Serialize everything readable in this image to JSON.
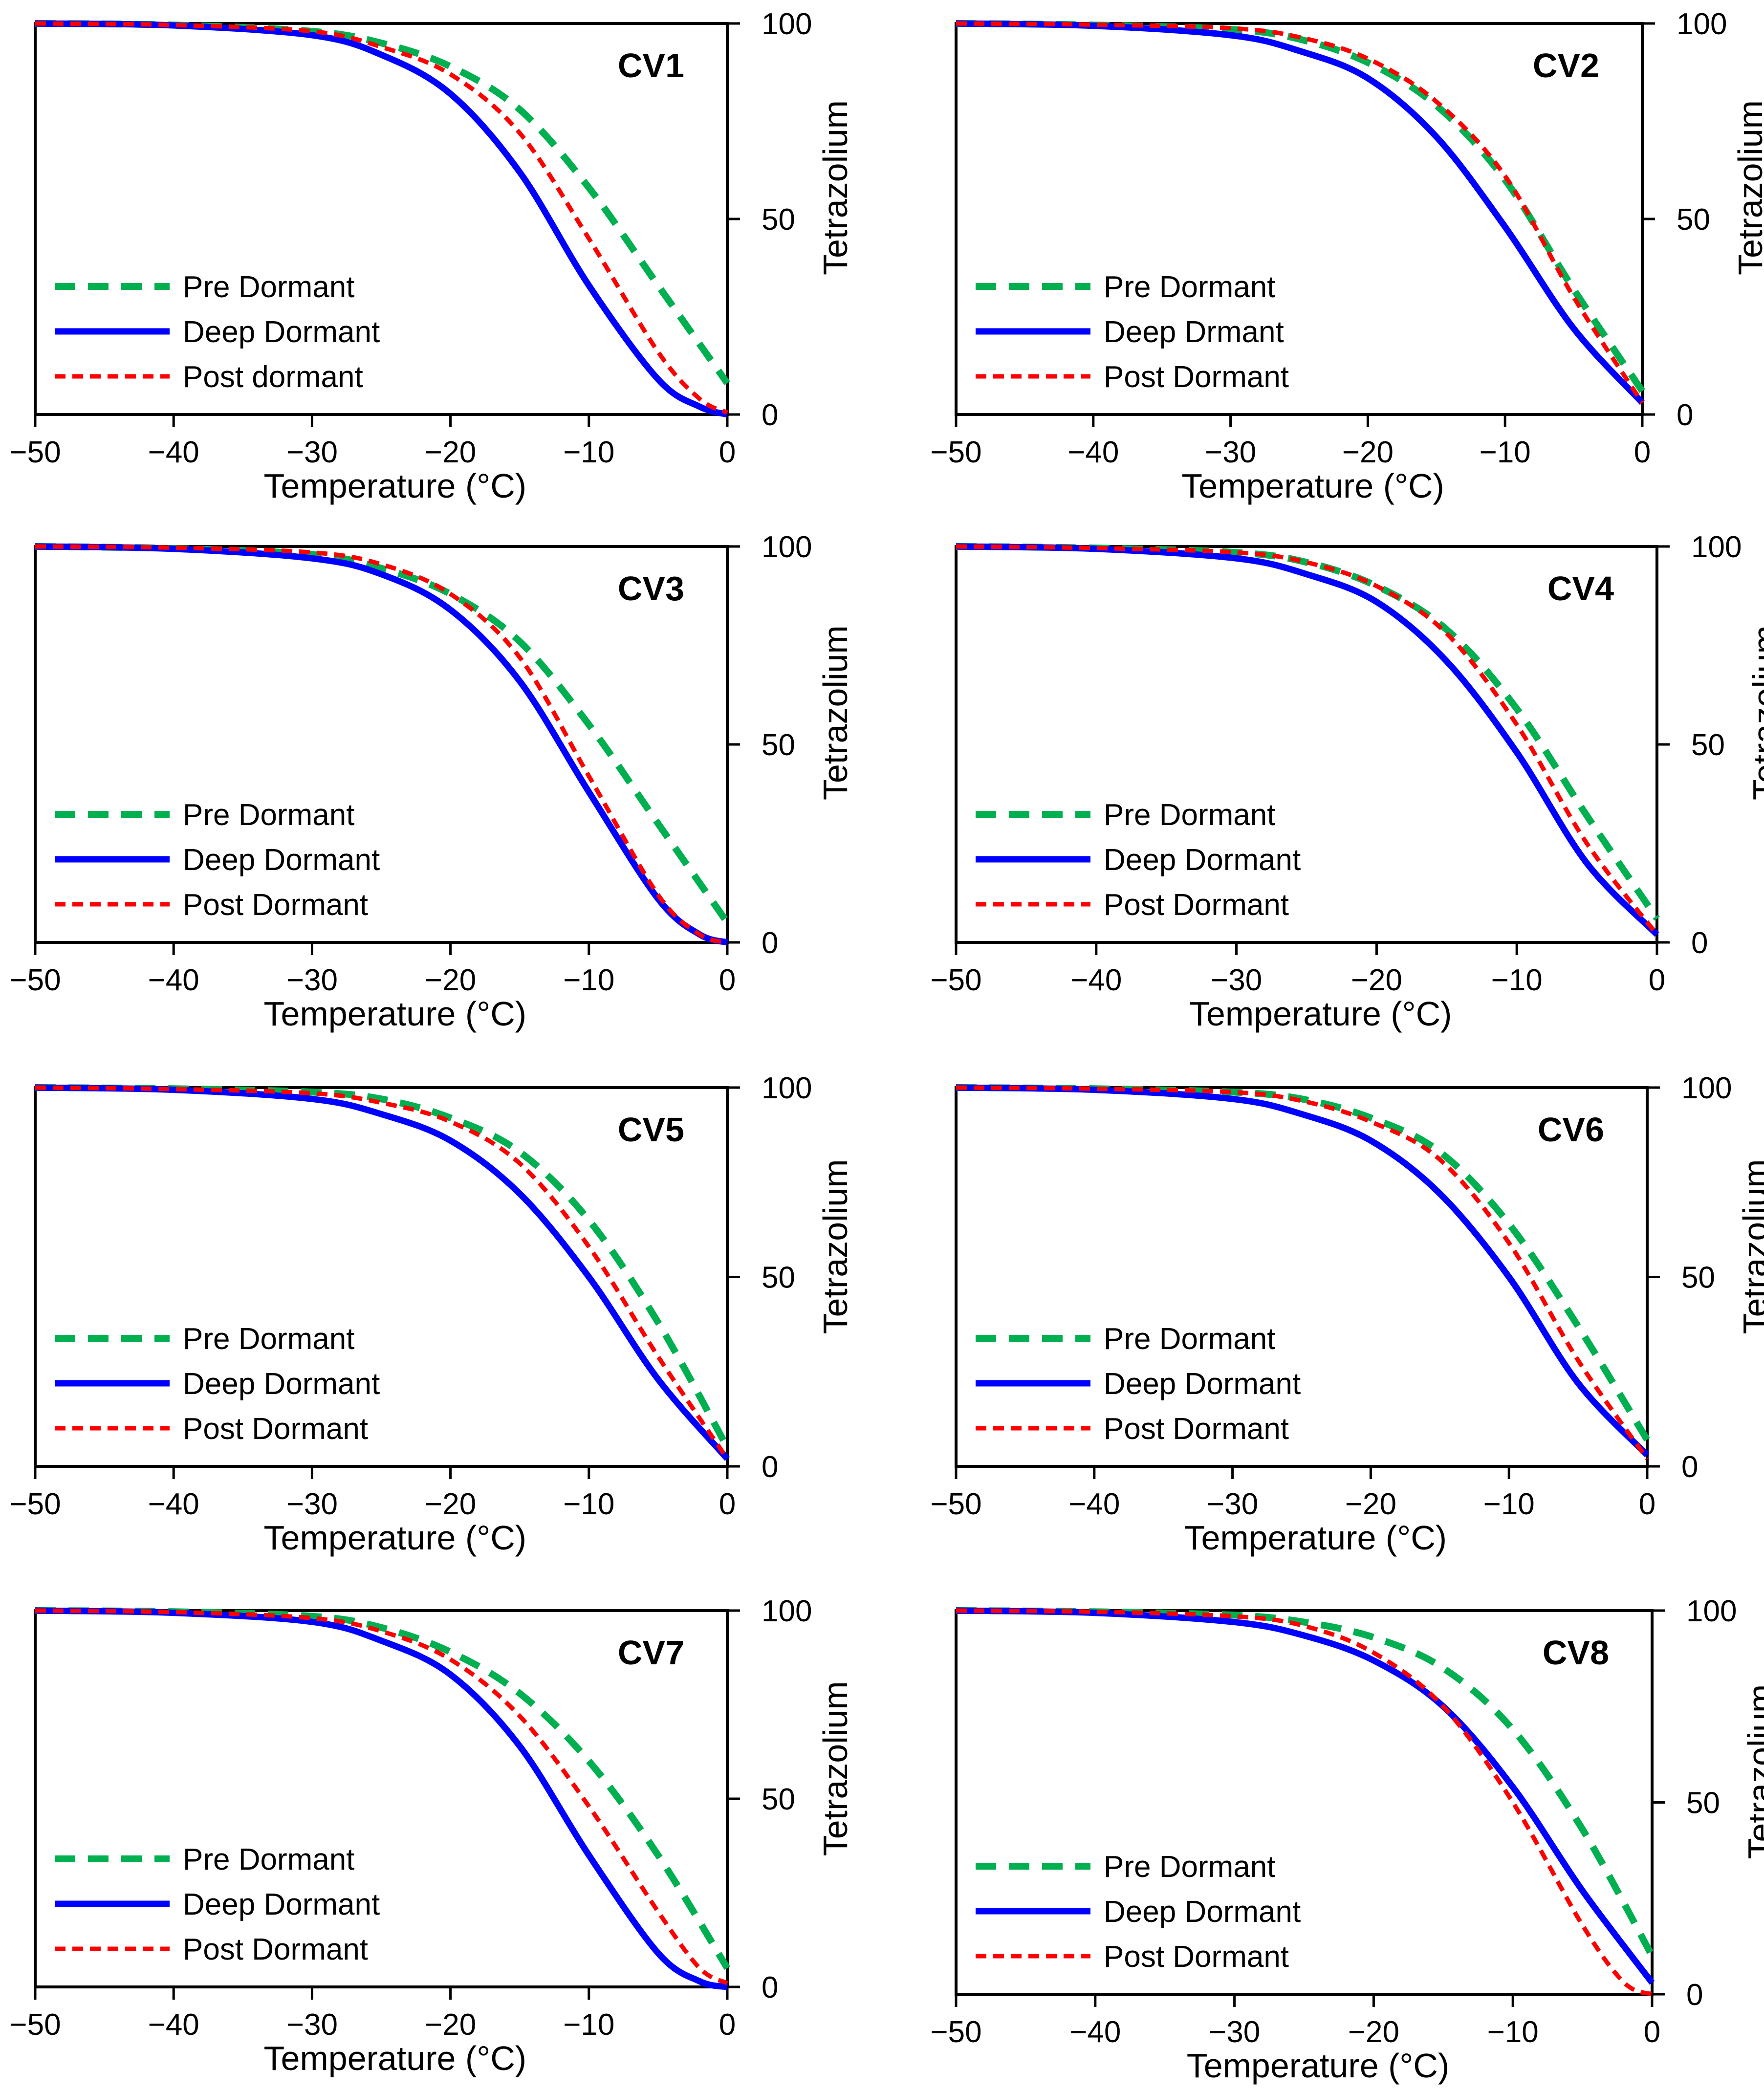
{
  "chart_data": [
    {
      "type": "line",
      "title": "CV1",
      "xlabel": "Temperature (°C)",
      "ylabel": "Tetrazolium",
      "xlim": [
        -50,
        0
      ],
      "ylim": [
        0,
        100
      ],
      "xticks": [
        "−50",
        "−40",
        "−30",
        "−20",
        "−10",
        "0"
      ],
      "yticks": [
        "100",
        "50",
        "0"
      ],
      "series": [
        {
          "name": "Pre Dormant",
          "style": "pre",
          "x": [
            -50,
            -40,
            -30,
            -25,
            -20,
            -15,
            -10,
            -5,
            0
          ],
          "y": [
            100,
            99.6,
            98,
            95,
            89,
            78,
            58,
            33,
            8
          ]
        },
        {
          "name": "Deep Dormant",
          "style": "deep",
          "x": [
            -50,
            -40,
            -30,
            -25,
            -20,
            -15,
            -10,
            -5,
            -2,
            0
          ],
          "y": [
            100,
            99.5,
            97,
            92,
            82,
            62,
            33,
            9,
            2,
            0
          ]
        },
        {
          "name": "Post dormant",
          "style": "post",
          "x": [
            -50,
            -40,
            -30,
            -25,
            -20,
            -15,
            -10,
            -5,
            -2,
            0
          ],
          "y": [
            100,
            99.6,
            98,
            94,
            87,
            72,
            45,
            16,
            4,
            0.5
          ]
        }
      ]
    },
    {
      "type": "line",
      "title": "CV2",
      "xlabel": "Temperature (°C)",
      "ylabel": "Tetrazolium",
      "xlim": [
        -50,
        0
      ],
      "ylim": [
        0,
        100
      ],
      "xticks": [
        "−50",
        "−40",
        "−30",
        "−20",
        "−10",
        "0"
      ],
      "yticks": [
        "100",
        "50",
        "0"
      ],
      "series": [
        {
          "name": "Pre Dormant",
          "style": "pre",
          "x": [
            -50,
            -40,
            -30,
            -25,
            -20,
            -15,
            -10,
            -5,
            0
          ],
          "y": [
            100,
            99.6,
            98.5,
            96,
            90,
            79,
            60,
            32,
            6
          ]
        },
        {
          "name": "Deep Drmant",
          "style": "deep",
          "x": [
            -50,
            -40,
            -30,
            -25,
            -20,
            -15,
            -10,
            -5,
            0
          ],
          "y": [
            100,
            99.4,
            97,
            93,
            86,
            71,
            48,
            22,
            3
          ]
        },
        {
          "name": "Post Dormant",
          "style": "post",
          "x": [
            -50,
            -40,
            -30,
            -25,
            -20,
            -15,
            -10,
            -5,
            0
          ],
          "y": [
            100,
            99.7,
            98.8,
            96.5,
            91,
            80,
            61,
            30,
            3
          ]
        }
      ]
    },
    {
      "type": "line",
      "title": "CV3",
      "xlabel": "Temperature (°C)",
      "ylabel": "Tetrazolium",
      "xlim": [
        -50,
        0
      ],
      "ylim": [
        0,
        100
      ],
      "xticks": [
        "−50",
        "−40",
        "−30",
        "−20",
        "−10",
        "0"
      ],
      "yticks": [
        "100",
        "50",
        "0"
      ],
      "series": [
        {
          "name": "Pre Dormant",
          "style": "pre",
          "x": [
            -50,
            -40,
            -30,
            -25,
            -20,
            -15,
            -10,
            -5,
            0
          ],
          "y": [
            100,
            99.5,
            98,
            94.5,
            88,
            76,
            55,
            30,
            5
          ]
        },
        {
          "name": "Deep Dormant",
          "style": "deep",
          "x": [
            -50,
            -40,
            -30,
            -25,
            -20,
            -15,
            -10,
            -5,
            -2,
            0
          ],
          "y": [
            100,
            99.4,
            97,
            93,
            84,
            66,
            38,
            11,
            2,
            0
          ]
        },
        {
          "name": "Post Dormant",
          "style": "post",
          "x": [
            -50,
            -40,
            -30,
            -25,
            -20,
            -15,
            -10,
            -5,
            -2,
            0
          ],
          "y": [
            100,
            99.7,
            98.5,
            95.5,
            88,
            72,
            42,
            12,
            2,
            0
          ]
        }
      ]
    },
    {
      "type": "line",
      "title": "CV4",
      "xlabel": "Temperature (°C)",
      "ylabel": "Tetrazolium",
      "xlim": [
        -50,
        0
      ],
      "ylim": [
        0,
        100
      ],
      "xticks": [
        "−50",
        "−40",
        "−30",
        "−20",
        "−10",
        "0"
      ],
      "yticks": [
        "100",
        "50",
        "0"
      ],
      "series": [
        {
          "name": "Pre Dormant",
          "style": "pre",
          "x": [
            -50,
            -40,
            -30,
            -25,
            -20,
            -15,
            -10,
            -5,
            0
          ],
          "y": [
            100,
            99.6,
            98.5,
            96,
            90,
            79,
            59,
            32,
            6
          ]
        },
        {
          "name": "Deep Dormant",
          "style": "deep",
          "x": [
            -50,
            -40,
            -30,
            -25,
            -20,
            -15,
            -10,
            -5,
            0
          ],
          "y": [
            100,
            99.4,
            97,
            93,
            86,
            71,
            48,
            20,
            2
          ]
        },
        {
          "name": "Post Dormant",
          "style": "post",
          "x": [
            -50,
            -40,
            -30,
            -25,
            -20,
            -15,
            -10,
            -5,
            0
          ],
          "y": [
            100,
            99.6,
            98.5,
            96,
            90,
            78,
            55,
            25,
            2
          ]
        }
      ]
    },
    {
      "type": "line",
      "title": "CV5",
      "xlabel": "Temperature (°C)",
      "ylabel": "Tetrazolium",
      "xlim": [
        -50,
        0
      ],
      "ylim": [
        0,
        100
      ],
      "xticks": [
        "−50",
        "−40",
        "−30",
        "−20",
        "−10",
        "0"
      ],
      "yticks": [
        "100",
        "50",
        "0"
      ],
      "series": [
        {
          "name": "Pre Dormant",
          "style": "pre",
          "x": [
            -50,
            -40,
            -30,
            -25,
            -20,
            -15,
            -10,
            -5,
            0
          ],
          "y": [
            100,
            99.7,
            98.8,
            97,
            92,
            83,
            65,
            38,
            5
          ]
        },
        {
          "name": "Deep Dormant",
          "style": "deep",
          "x": [
            -50,
            -40,
            -30,
            -25,
            -20,
            -15,
            -10,
            -5,
            0
          ],
          "y": [
            100,
            99.4,
            97,
            93,
            86,
            72,
            50,
            23,
            2
          ]
        },
        {
          "name": "Post Dormant",
          "style": "post",
          "x": [
            -50,
            -40,
            -30,
            -25,
            -20,
            -15,
            -10,
            -5,
            0
          ],
          "y": [
            100,
            99.6,
            98.5,
            96,
            91,
            80,
            58,
            29,
            2
          ]
        }
      ]
    },
    {
      "type": "line",
      "title": "CV6",
      "xlabel": "Temperature (°C)",
      "ylabel": "Tetrazolium",
      "xlim": [
        -50,
        0
      ],
      "ylim": [
        0,
        100
      ],
      "xticks": [
        "−50",
        "−40",
        "−30",
        "−20",
        "−10",
        "0"
      ],
      "yticks": [
        "100",
        "50",
        "0"
      ],
      "series": [
        {
          "name": "Pre Dormant",
          "style": "pre",
          "x": [
            -50,
            -40,
            -30,
            -25,
            -20,
            -15,
            -10,
            -5,
            0
          ],
          "y": [
            100,
            99.7,
            98.8,
            97,
            92,
            83,
            64,
            37,
            7
          ]
        },
        {
          "name": "Deep Dormant",
          "style": "deep",
          "x": [
            -50,
            -40,
            -30,
            -25,
            -20,
            -15,
            -10,
            -5,
            0
          ],
          "y": [
            100,
            99.4,
            97,
            93,
            86,
            72,
            50,
            22,
            3
          ]
        },
        {
          "name": "Post Dormant",
          "style": "post",
          "x": [
            -50,
            -40,
            -30,
            -25,
            -20,
            -15,
            -10,
            -5,
            0
          ],
          "y": [
            100,
            99.7,
            98.8,
            96.5,
            91,
            81,
            59,
            28,
            2
          ]
        }
      ]
    },
    {
      "type": "line",
      "title": "CV7",
      "xlabel": "Temperature (°C)",
      "ylabel": "Tetrazolium",
      "xlim": [
        -50,
        0
      ],
      "ylim": [
        0,
        100
      ],
      "xticks": [
        "−50",
        "−40",
        "−30",
        "−20",
        "−10",
        "0"
      ],
      "yticks": [
        "100",
        "50",
        "0"
      ],
      "series": [
        {
          "name": "Pre Dormant",
          "style": "pre",
          "x": [
            -50,
            -40,
            -30,
            -25,
            -20,
            -15,
            -10,
            -5,
            0
          ],
          "y": [
            100,
            99.7,
            98.5,
            95.5,
            89,
            78,
            60,
            35,
            5
          ]
        },
        {
          "name": "Deep Dormant",
          "style": "deep",
          "x": [
            -50,
            -40,
            -30,
            -25,
            -20,
            -15,
            -10,
            -5,
            -2,
            0
          ],
          "y": [
            100,
            99.4,
            97,
            92,
            83,
            64,
            35,
            9,
            1.5,
            0
          ]
        },
        {
          "name": "Post Dormant",
          "style": "post",
          "x": [
            -50,
            -40,
            -30,
            -25,
            -20,
            -15,
            -10,
            -5,
            -2,
            0
          ],
          "y": [
            100,
            99.6,
            98,
            94.5,
            87,
            72,
            48,
            20,
            5,
            1
          ]
        }
      ]
    },
    {
      "type": "line",
      "title": "CV8",
      "xlabel": "Temperature (°C)",
      "ylabel": "Tetrazolium",
      "xlim": [
        -50,
        0
      ],
      "ylim": [
        0,
        100
      ],
      "xticks": [
        "−50",
        "−40",
        "−30",
        "−20",
        "−10",
        "0"
      ],
      "yticks": [
        "100",
        "50",
        "0"
      ],
      "series": [
        {
          "name": "Pre Dormant",
          "style": "pre",
          "x": [
            -50,
            -40,
            -30,
            -25,
            -20,
            -15,
            -10,
            -5,
            0
          ],
          "y": [
            100,
            99.7,
            98.8,
            97,
            93,
            85,
            69,
            43,
            10
          ]
        },
        {
          "name": "Deep Dormant",
          "style": "deep",
          "x": [
            -50,
            -40,
            -30,
            -25,
            -20,
            -15,
            -10,
            -5,
            0
          ],
          "y": [
            100,
            99.4,
            97,
            93.5,
            87,
            75,
            54,
            27,
            3
          ]
        },
        {
          "name": "Post Dormant",
          "style": "post",
          "x": [
            -50,
            -40,
            -30,
            -25,
            -20,
            -15,
            -10,
            -5,
            -2,
            0
          ],
          "y": [
            100,
            99.7,
            98.5,
            96,
            89,
            75,
            50,
            18,
            3,
            0
          ]
        }
      ]
    }
  ]
}
